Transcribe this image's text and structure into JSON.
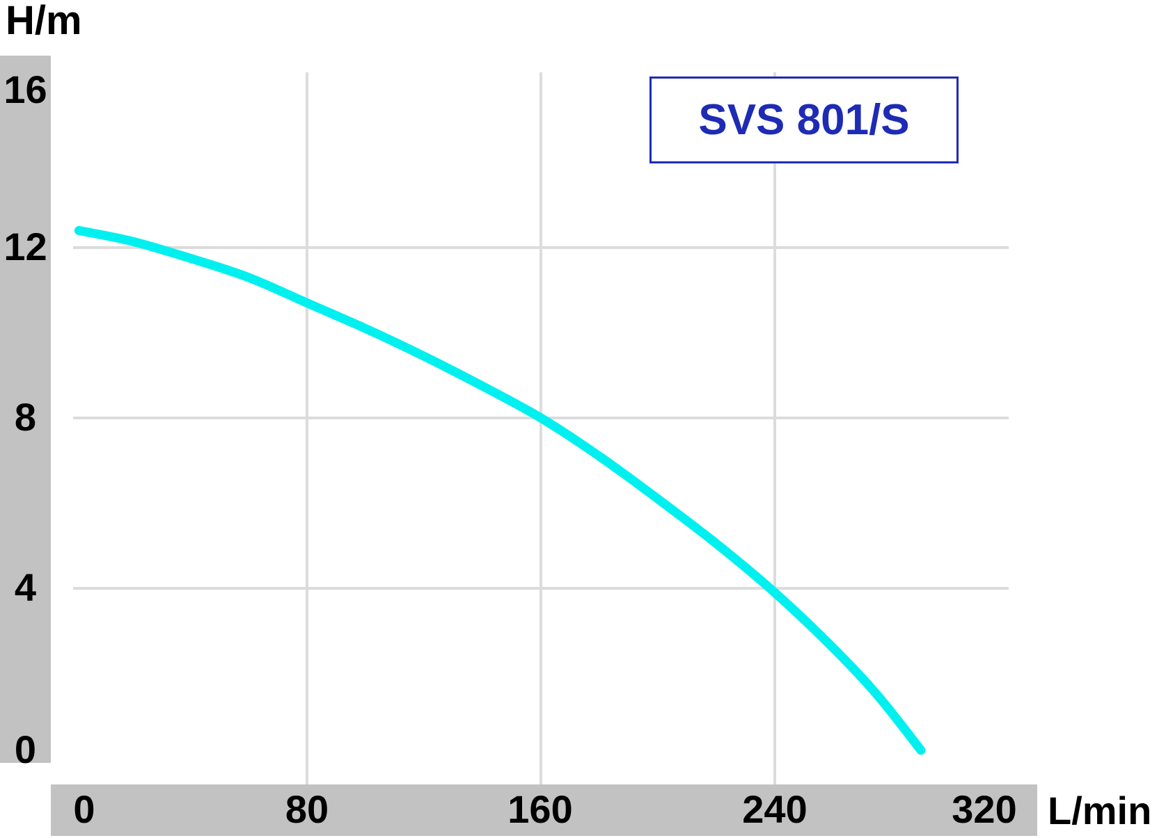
{
  "chart_data": {
    "type": "line",
    "title": "SVS 801/S",
    "ylabel": "H/m",
    "xlabel": "L/min",
    "xlim": [
      0,
      320
    ],
    "ylim": [
      0,
      16
    ],
    "x_ticks": [
      0,
      80,
      160,
      240,
      320
    ],
    "y_ticks": [
      16,
      12,
      8,
      4,
      0
    ],
    "grid_x": [
      80,
      160,
      240
    ],
    "grid_y": [
      12,
      8,
      4
    ],
    "legend_position": "none",
    "series": [
      {
        "name": "SVS 801/S",
        "x": [
          2,
          20,
          40,
          60,
          80,
          100,
          120,
          140,
          160,
          180,
          200,
          220,
          240,
          260,
          275,
          290
        ],
        "y": [
          12.4,
          12.15,
          11.75,
          11.3,
          10.7,
          10.1,
          9.45,
          8.75,
          8.0,
          7.1,
          6.1,
          5.05,
          3.9,
          2.6,
          1.5,
          0.2
        ]
      }
    ]
  },
  "colors": {
    "curve": "#00F0F0",
    "accent_blue": "#1E2BB4",
    "axis_bar_gray": "#c2c2c2",
    "grid_gray": "#dcdcdc",
    "text": "#000000"
  }
}
